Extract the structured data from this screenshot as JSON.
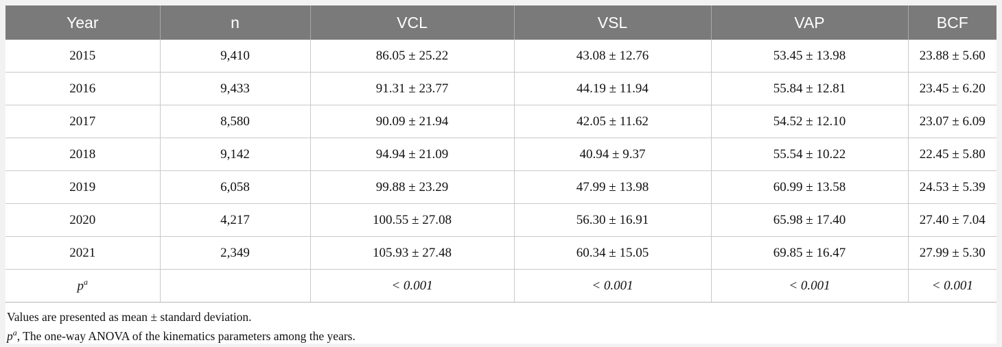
{
  "table": {
    "headers": [
      "Year",
      "n",
      "VCL",
      "VSL",
      "VAP",
      "BCF"
    ],
    "rows": [
      [
        "2015",
        "9,410",
        "86.05 ± 25.22",
        "43.08 ± 12.76",
        "53.45 ± 13.98",
        "23.88 ± 5.60"
      ],
      [
        "2016",
        "9,433",
        "91.31 ± 23.77",
        "44.19 ± 11.94",
        "55.84 ± 12.81",
        "23.45 ± 6.20"
      ],
      [
        "2017",
        "8,580",
        "90.09 ± 21.94",
        "42.05 ± 11.62",
        "54.52 ± 12.10",
        "23.07 ± 6.09"
      ],
      [
        "2018",
        "9,142",
        "94.94 ± 21.09",
        "40.94 ± 9.37",
        "55.54 ± 10.22",
        "22.45 ± 5.80"
      ],
      [
        "2019",
        "6,058",
        "99.88 ± 23.29",
        "47.99 ± 13.98",
        "60.99 ± 13.58",
        "24.53 ± 5.39"
      ],
      [
        "2020",
        "4,217",
        "100.55 ± 27.08",
        "56.30 ± 16.91",
        "65.98 ± 17.40",
        "27.40 ± 7.04"
      ],
      [
        "2021",
        "2,349",
        "105.93 ± 27.48",
        "60.34 ± 15.05",
        "69.85 ± 16.47",
        "27.99 ± 5.30"
      ]
    ],
    "p_row": {
      "label": "p",
      "label_sup": "a",
      "n": "",
      "values": [
        "< 0.001",
        "< 0.001",
        "< 0.001",
        "< 0.001"
      ]
    }
  },
  "footnotes": {
    "line1": "Values are presented as mean ± standard deviation.",
    "line2_symbol": "p",
    "line2_sup": "a",
    "line2_text": ", The one-way ANOVA of the kinematics parameters among the years."
  },
  "colors": {
    "header_bg": "#7a7a7a",
    "header_text": "#ffffff",
    "page_bg": "#f2f2f2"
  }
}
